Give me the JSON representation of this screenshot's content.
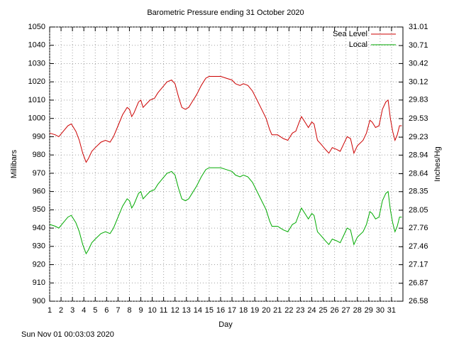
{
  "chart_data": {
    "type": "line",
    "title": "Barometric Pressure ending 31 October 2020",
    "xlabel": "Day",
    "ylabel": "Millibars",
    "y2label": "Inches/Hg",
    "footer": "Sun Nov 01 00:03:03 2020",
    "x": [
      1.0,
      1.5,
      1.8,
      2.2,
      2.6,
      2.9,
      3.3,
      3.6,
      3.9,
      4.2,
      4.4,
      4.7,
      5.0,
      5.5,
      5.9,
      6.3,
      6.6,
      7.0,
      7.4,
      7.8,
      8.0,
      8.2,
      8.4,
      8.8,
      9.0,
      9.2,
      9.5,
      9.8,
      10.2,
      10.5,
      10.9,
      11.3,
      11.7,
      12.0,
      12.3,
      12.6,
      12.9,
      13.2,
      13.5,
      13.9,
      14.3,
      14.7,
      15.0,
      15.5,
      16.0,
      16.5,
      17.0,
      17.3,
      17.7,
      18.0,
      18.4,
      18.8,
      19.2,
      19.6,
      20.0,
      20.3,
      20.5,
      21.0,
      21.5,
      21.9,
      22.3,
      22.6,
      22.9,
      23.1,
      23.5,
      23.7,
      24.0,
      24.2,
      24.5,
      24.8,
      25.2,
      25.5,
      25.8,
      26.2,
      26.5,
      26.8,
      27.1,
      27.4,
      27.7,
      28.0,
      28.5,
      28.8,
      29.1,
      29.3,
      29.6,
      29.9,
      30.2,
      30.5,
      30.7,
      30.9,
      31.1,
      31.3,
      31.5,
      31.7,
      31.9
    ],
    "series": [
      {
        "name": "Sea Level",
        "color": "#cc0000",
        "values": [
          992,
          991,
          990,
          993,
          996,
          997,
          993,
          988,
          981,
          976,
          978,
          982,
          984,
          987,
          988,
          987,
          990,
          996,
          1002,
          1006,
          1005,
          1001,
          1003,
          1009,
          1010,
          1006,
          1008,
          1010,
          1011,
          1014,
          1017,
          1020,
          1021,
          1019,
          1012,
          1006,
          1005,
          1006,
          1009,
          1013,
          1018,
          1022,
          1023,
          1023,
          1023,
          1022,
          1021,
          1019,
          1018,
          1019,
          1018,
          1015,
          1010,
          1005,
          1000,
          994,
          991,
          991,
          989,
          988,
          992,
          993,
          998,
          1001,
          997,
          995,
          998,
          997,
          988,
          986,
          983,
          981,
          984,
          983,
          982,
          986,
          990,
          989,
          981,
          985,
          988,
          992,
          999,
          998,
          995,
          996,
          1005,
          1009,
          1010,
          1000,
          993,
          988,
          991,
          996,
          996
        ]
      },
      {
        "name": "Local",
        "color": "#00aa00",
        "values": [
          942,
          941,
          940,
          943,
          946,
          947,
          943,
          938,
          931,
          926,
          928,
          932,
          934,
          937,
          938,
          937,
          940,
          946,
          952,
          956,
          955,
          951,
          953,
          959,
          960,
          956,
          958,
          960,
          961,
          964,
          967,
          970,
          971,
          969,
          962,
          956,
          955,
          956,
          959,
          963,
          968,
          972,
          973,
          973,
          973,
          972,
          971,
          969,
          968,
          969,
          968,
          965,
          960,
          955,
          950,
          944,
          941,
          941,
          939,
          938,
          942,
          943,
          948,
          951,
          947,
          945,
          948,
          947,
          938,
          936,
          933,
          931,
          934,
          933,
          932,
          936,
          940,
          939,
          931,
          935,
          938,
          942,
          949,
          948,
          945,
          946,
          955,
          959,
          960,
          950,
          943,
          938,
          941,
          946,
          946
        ]
      }
    ],
    "xlim": [
      1,
      32
    ],
    "xticks": [
      1,
      2,
      3,
      4,
      5,
      6,
      7,
      8,
      9,
      10,
      11,
      12,
      13,
      14,
      15,
      16,
      17,
      18,
      19,
      20,
      21,
      22,
      23,
      24,
      25,
      26,
      27,
      28,
      29,
      30,
      31
    ],
    "ylim": [
      900,
      1050
    ],
    "yticks": [
      900,
      910,
      920,
      930,
      940,
      950,
      960,
      970,
      980,
      990,
      1000,
      1010,
      1020,
      1030,
      1040,
      1050
    ],
    "y2lim": [
      26.58,
      31.01
    ],
    "y2ticks": [
      26.58,
      26.87,
      27.17,
      27.46,
      27.76,
      28.05,
      28.35,
      28.64,
      28.94,
      29.23,
      29.53,
      29.83,
      30.12,
      30.42,
      30.71,
      31.01
    ],
    "grid": true,
    "legend": "top right"
  }
}
